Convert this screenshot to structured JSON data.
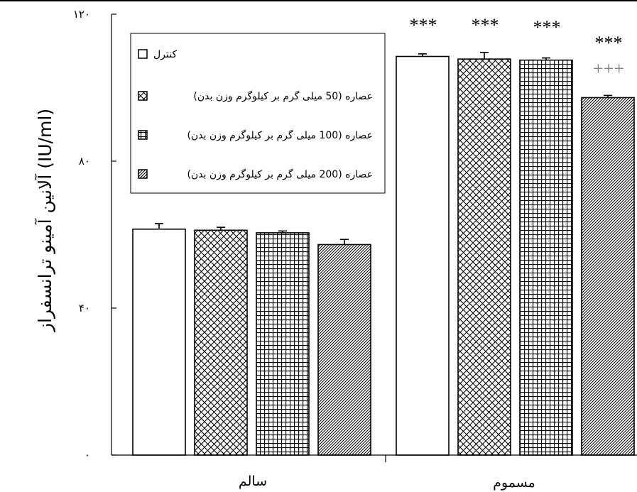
{
  "chart_data": {
    "type": "bar",
    "ylabel": "آلانین آمینو ترانسفراز (IU/ml)",
    "ylim": [
      0,
      120
    ],
    "y_ticks": [
      {
        "value": 0,
        "label": "٠"
      },
      {
        "value": 40,
        "label": "۴٠"
      },
      {
        "value": 80,
        "label": "٨٠"
      },
      {
        "value": 120,
        "label": "۱۲٠"
      }
    ],
    "categories": [
      "سالم",
      "مسموم"
    ],
    "legend_position": "top-left",
    "series": [
      {
        "name": "کنترل",
        "pattern": "plain",
        "values": [
          61.5,
          108.5
        ],
        "errors": [
          1.5,
          0.7
        ]
      },
      {
        "name": "عصاره (50 میلی گرم بر کیلوگرم وزن بدن)",
        "pattern": "diamond",
        "values": [
          61.2,
          107.8
        ],
        "errors": [
          0.8,
          1.8
        ]
      },
      {
        "name": "عصاره (100 میلی گرم بر کیلوگرم وزن بدن)",
        "pattern": "grid",
        "values": [
          60.5,
          107.5
        ],
        "errors": [
          0.5,
          0.6
        ]
      },
      {
        "name": "عصاره (200 میلی گرم بر کیلوگرم وزن بدن)",
        "pattern": "diagonal",
        "values": [
          57.3,
          97.3
        ],
        "errors": [
          1.4,
          0.6
        ]
      }
    ],
    "annotations": [
      {
        "category": 1,
        "series": 0,
        "lines": [
          "***"
        ]
      },
      {
        "category": 1,
        "series": 1,
        "lines": [
          "***"
        ]
      },
      {
        "category": 1,
        "series": 2,
        "lines": [
          "***"
        ]
      },
      {
        "category": 1,
        "series": 3,
        "lines": [
          "***",
          "+++"
        ]
      }
    ],
    "colors": {
      "axis": "#000000",
      "bar_fill": "#ffffff",
      "bar_stroke": "#000000",
      "sig_stars": "#000000",
      "sig_plus": "#808080"
    }
  }
}
